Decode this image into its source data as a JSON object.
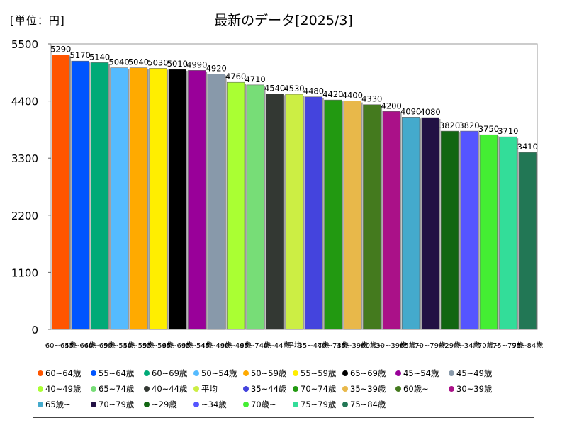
{
  "chart_data": {
    "type": "bar",
    "title": "最新のデータ[2025/3]",
    "unit_label": "[単位：円]",
    "ylim": [
      0,
      5500
    ],
    "yticks": [
      0,
      1100,
      2200,
      3300,
      4400,
      5500
    ],
    "categories": [
      "60~64歳",
      "55~64歳",
      "60~69歳",
      "50~54歳",
      "50~59歳",
      "55~59歳",
      "65~69歳",
      "45~54歳",
      "45~49歳",
      "40~49歳",
      "65~74歳",
      "40~44歳",
      "平均",
      "35~44歳",
      "70~74歳",
      "35~39歳",
      "60歳~",
      "30~39歳",
      "65歳~",
      "70~79歳",
      "~29歳",
      "~34歳",
      "70歳~",
      "75~79歳",
      "75~84歳"
    ],
    "values": [
      5290,
      5170,
      5140,
      5040,
      5040,
      5030,
      5010,
      4990,
      4920,
      4760,
      4710,
      4540,
      4530,
      4480,
      4420,
      4400,
      4330,
      4200,
      4090,
      4080,
      3820,
      3820,
      3750,
      3710,
      3410
    ],
    "colors": [
      "#ff5500",
      "#0055ff",
      "#00aa77",
      "#55bbff",
      "#ffaa00",
      "#ffee00",
      "#000000",
      "#990099",
      "#8899aa",
      "#aaff33",
      "#77dd77",
      "#333833",
      "#ccee44",
      "#4444dd",
      "#229911",
      "#e8b84a",
      "#447a1e",
      "#aa1188",
      "#44aacc",
      "#221144",
      "#116611",
      "#5555ff",
      "#44ee33",
      "#33dd99",
      "#227755"
    ],
    "legend_placement": "bottom",
    "grid": false
  }
}
